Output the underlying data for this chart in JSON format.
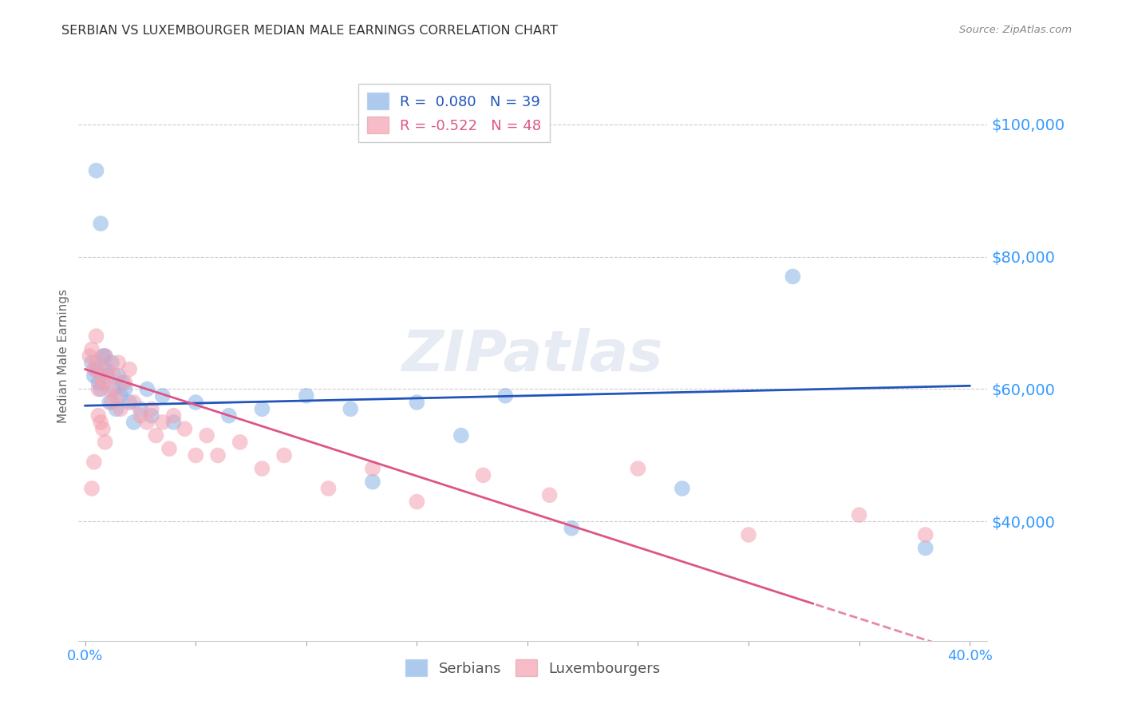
{
  "title": "SERBIAN VS LUXEMBOURGER MEDIAN MALE EARNINGS CORRELATION CHART",
  "source": "Source: ZipAtlas.com",
  "ylabel": "Median Male Earnings",
  "ytick_labels": [
    "$40,000",
    "$60,000",
    "$80,000",
    "$100,000"
  ],
  "ytick_values": [
    40000,
    60000,
    80000,
    100000
  ],
  "ylim": [
    22000,
    108000
  ],
  "xlim": [
    -0.003,
    0.408
  ],
  "watermark": "ZIPatlas",
  "legend_blue_r": "R =  0.080",
  "legend_blue_n": "N = 39",
  "legend_pink_r": "R = -0.522",
  "legend_pink_n": "N = 48",
  "blue_color": "#8ab4e8",
  "pink_color": "#f4a0b0",
  "blue_line_color": "#2255bb",
  "pink_line_color": "#dd5588",
  "title_color": "#333333",
  "ytick_color": "#3399ff",
  "background_color": "#ffffff",
  "grid_color": "#cccccc",
  "blue_scatter_x": [
    0.003,
    0.004,
    0.005,
    0.006,
    0.007,
    0.008,
    0.009,
    0.01,
    0.011,
    0.012,
    0.013,
    0.014,
    0.015,
    0.016,
    0.017,
    0.018,
    0.02,
    0.022,
    0.025,
    0.028,
    0.03,
    0.035,
    0.04,
    0.05,
    0.065,
    0.08,
    0.1,
    0.12,
    0.13,
    0.15,
    0.17,
    0.19,
    0.22,
    0.27,
    0.32,
    0.38,
    0.005,
    0.007,
    0.009
  ],
  "blue_scatter_y": [
    64000,
    62000,
    63000,
    61000,
    60000,
    65000,
    63000,
    62000,
    58000,
    64000,
    60000,
    57000,
    62000,
    59000,
    61000,
    60000,
    58000,
    55000,
    57000,
    60000,
    56000,
    59000,
    55000,
    58000,
    56000,
    57000,
    59000,
    57000,
    46000,
    58000,
    53000,
    59000,
    39000,
    45000,
    77000,
    36000,
    93000,
    85000,
    65000
  ],
  "pink_scatter_x": [
    0.002,
    0.003,
    0.004,
    0.005,
    0.006,
    0.007,
    0.008,
    0.009,
    0.01,
    0.011,
    0.012,
    0.013,
    0.014,
    0.015,
    0.016,
    0.018,
    0.02,
    0.022,
    0.025,
    0.028,
    0.03,
    0.032,
    0.035,
    0.038,
    0.04,
    0.045,
    0.05,
    0.055,
    0.06,
    0.07,
    0.08,
    0.09,
    0.11,
    0.13,
    0.15,
    0.18,
    0.21,
    0.25,
    0.3,
    0.35,
    0.38,
    0.005,
    0.007,
    0.009,
    0.004,
    0.006,
    0.008,
    0.003
  ],
  "pink_scatter_y": [
    65000,
    66000,
    63000,
    64000,
    60000,
    62000,
    61000,
    65000,
    63000,
    60000,
    58000,
    62000,
    59000,
    64000,
    57000,
    61000,
    63000,
    58000,
    56000,
    55000,
    57000,
    53000,
    55000,
    51000,
    56000,
    54000,
    50000,
    53000,
    50000,
    52000,
    48000,
    50000,
    45000,
    48000,
    43000,
    47000,
    44000,
    48000,
    38000,
    41000,
    38000,
    68000,
    55000,
    52000,
    49000,
    56000,
    54000,
    45000
  ]
}
